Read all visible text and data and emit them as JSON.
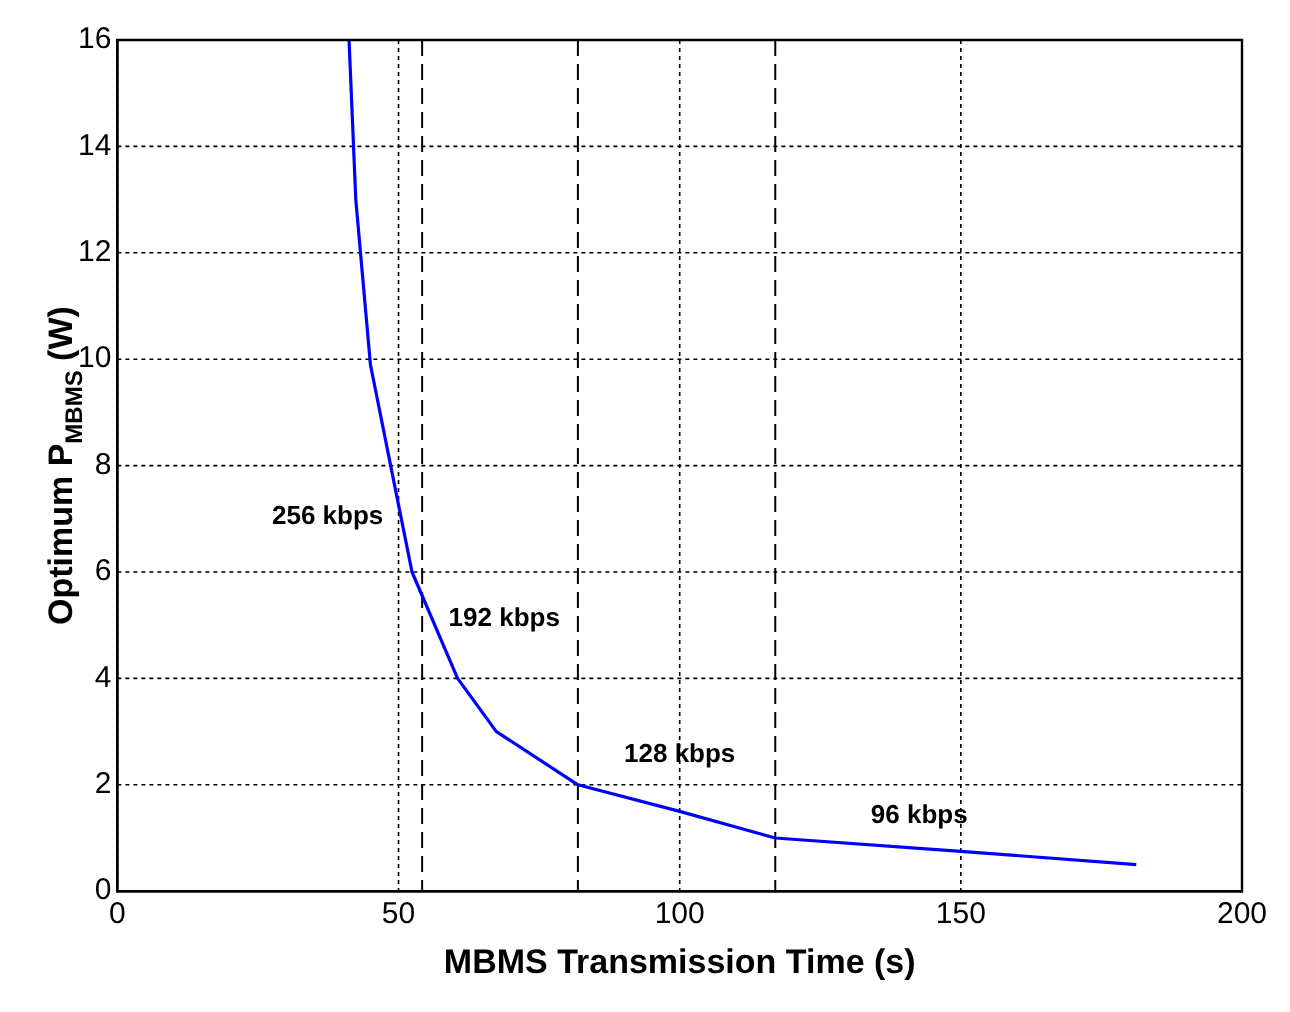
{
  "chart_data": {
    "type": "line",
    "xlabel": "MBMS Transmission Time (s)",
    "ylabel": "Optimum P$_{MBMS}$ (W)",
    "x": [
      41.2,
      42.4,
      45,
      48.6,
      52.4,
      60.5,
      67.4,
      81.9,
      100,
      117,
      150,
      181.2
    ],
    "series": [
      {
        "color": "#0000ff",
        "values": [
          16,
          13,
          9.9,
          8,
          6,
          4,
          3,
          2,
          1.5,
          1,
          0.75,
          0.5
        ]
      }
    ],
    "xlim": [
      0,
      200
    ],
    "xticks": [
      0,
      50,
      100,
      150,
      200
    ],
    "ylim": [
      0,
      16
    ],
    "yticks": [
      0,
      2,
      4,
      6,
      8,
      10,
      12,
      14,
      16
    ],
    "grid": true,
    "legend": false,
    "marker": "none",
    "line_style": "solid",
    "ref_lines": [
      {
        "axis": "x",
        "value": 54.2,
        "line_style": "dashed",
        "color": "#000000"
      },
      {
        "axis": "x",
        "value": 81.9,
        "line_style": "dashed",
        "color": "#000000"
      },
      {
        "axis": "x",
        "value": 117,
        "line_style": "dashed",
        "color": "#000000"
      }
    ],
    "annotations": [
      "256 kbps",
      "192 kbps",
      "128 kbps",
      "96 kbps"
    ]
  }
}
